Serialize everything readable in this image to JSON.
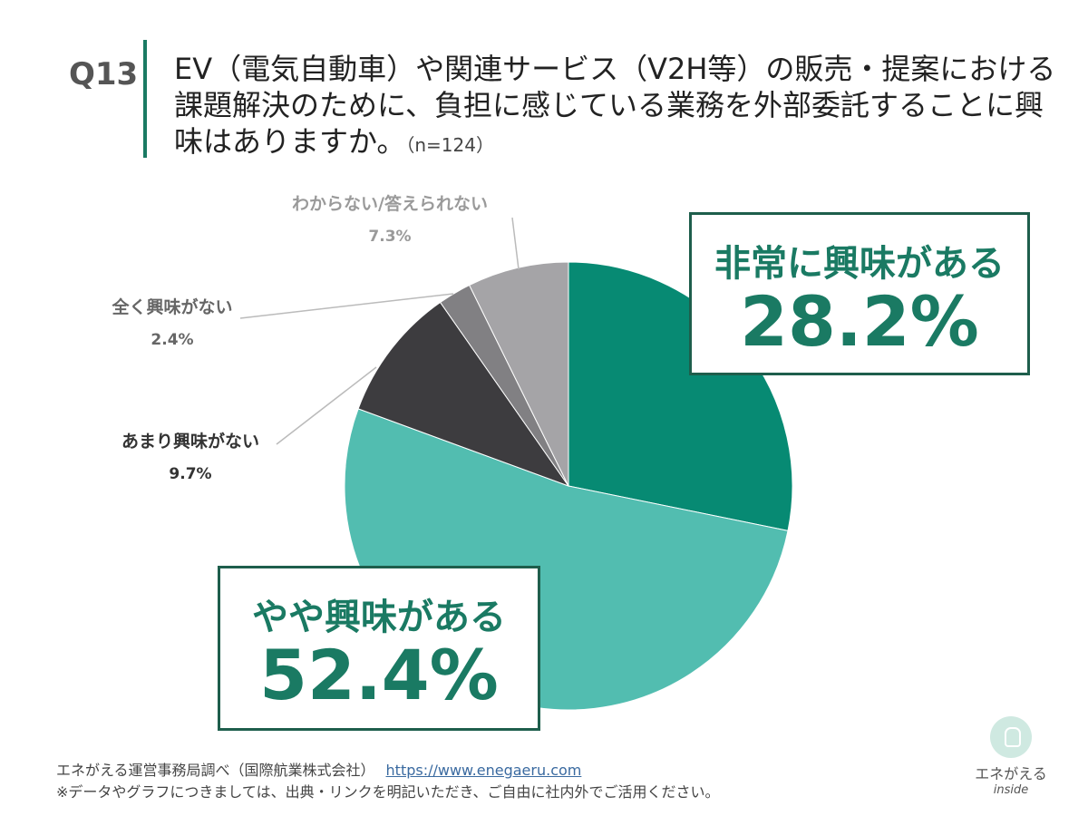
{
  "question": {
    "number": "Q13",
    "text": "EV（電気自動車）や関連サービス（V2H等）の販売・提案における課題解決のために、負担に感じている業務を外部委託することに興味はありますか。",
    "sample": "（n=124）"
  },
  "colors": {
    "accent": "#1a7a63",
    "border": "#1e5e4c"
  },
  "chart_data": {
    "type": "pie",
    "start": "12 o'clock, clockwise",
    "slices": [
      {
        "label": "非常に興味がある",
        "value": 28.2,
        "pct_label": "28.2%",
        "color": "#078a73"
      },
      {
        "label": "やや興味がある",
        "value": 52.4,
        "pct_label": "52.4%",
        "color": "#52bdb0"
      },
      {
        "label": "あまり興味がない",
        "value": 9.7,
        "pct_label": "9.7%",
        "color": "#3d3c3f"
      },
      {
        "label": "全く興味がない",
        "value": 2.4,
        "pct_label": "2.4%",
        "color": "#818083"
      },
      {
        "label": "わからない/答えられない",
        "value": 7.3,
        "pct_label": "7.3%",
        "color": "#a5a4a7"
      }
    ]
  },
  "footer": {
    "source": "エネがえる運営事務局調べ（国際航業株式会社）",
    "url": "https://www.enegaeru.com",
    "note": "※データやグラフにつきましては、出典・リンクを明記いただき、ご自由に社内外でご活用ください。"
  },
  "logo": {
    "name": "エネがえる",
    "sub": "inside"
  }
}
